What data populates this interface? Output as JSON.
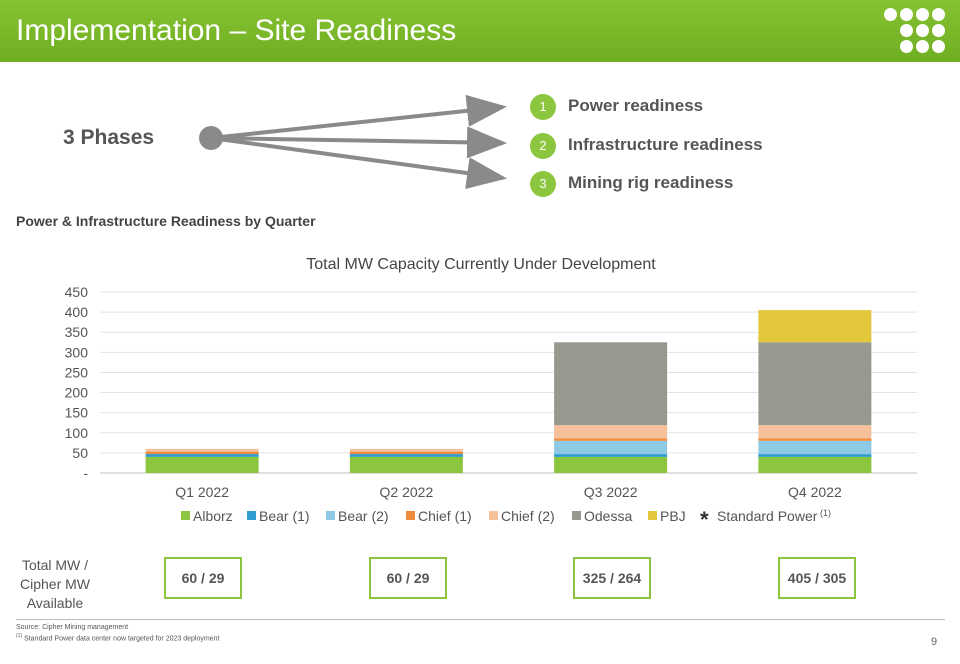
{
  "header": {
    "title": "Implementation – Site Readiness"
  },
  "phases": {
    "label": "3 Phases",
    "items": [
      {
        "number": "1",
        "text": "Power readiness"
      },
      {
        "number": "2",
        "text": "Infrastructure readiness"
      },
      {
        "number": "3",
        "text": "Mining rig readiness"
      }
    ]
  },
  "section_title": "Power & Infrastructure Readiness by Quarter",
  "chart_data": {
    "type": "bar",
    "stacked": true,
    "title": "Total MW Capacity Currently Under Development",
    "categories": [
      "Q1 2022",
      "Q2 2022",
      "Q3 2022",
      "Q4 2022"
    ],
    "y_ticks": [
      "-",
      "50",
      "100",
      "150",
      "200",
      "250",
      "300",
      "350",
      "400",
      "450"
    ],
    "ylim": [
      0,
      450
    ],
    "grid": true,
    "legend_position": "bottom",
    "series": [
      {
        "name": "Alborz",
        "color": "#8cc63f",
        "values": [
          40,
          40,
          40,
          40
        ]
      },
      {
        "name": "Bear (1)",
        "color": "#2e9ccf",
        "values": [
          7,
          7,
          7,
          7
        ]
      },
      {
        "name": "Bear (2)",
        "color": "#8ecae6",
        "values": [
          0,
          0,
          33,
          33
        ]
      },
      {
        "name": "Chief (1)",
        "color": "#ef8a3c",
        "values": [
          6,
          6,
          6,
          6
        ]
      },
      {
        "name": "Chief (2)",
        "color": "#f6c09a",
        "values": [
          7,
          7,
          33,
          33
        ]
      },
      {
        "name": "Odessa",
        "color": "#97998f",
        "values": [
          0,
          0,
          206,
          206
        ]
      },
      {
        "name": "PBJ",
        "color": "#e3c83e",
        "values": [
          0,
          0,
          0,
          80
        ]
      }
    ],
    "extra_legend": {
      "marker": "*",
      "name": "Standard Power",
      "note": "(1)"
    }
  },
  "totals": {
    "label": "Total MW / Cipher MW Available",
    "values": [
      "60 / 29",
      "60 / 29",
      "325 / 264",
      "405 / 305"
    ]
  },
  "footer": {
    "source": "Source: Cipher Mining management",
    "note_marker": "(1)",
    "note": " Standard Power data center now targeted for 2023 deployment",
    "page": "9"
  }
}
